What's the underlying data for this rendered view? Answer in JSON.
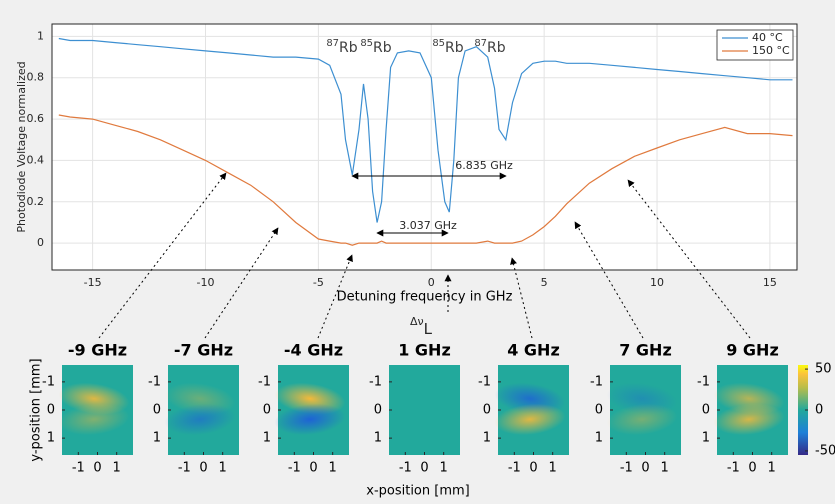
{
  "chart_data": [
    {
      "type": "line",
      "xlabel": "Detuning frequency in GHz",
      "ylabel": "Photodiode Voltage normalized",
      "x": [
        -16.5,
        -16,
        -15,
        -14,
        -13,
        -12,
        -11,
        -10,
        -9,
        -8,
        -7,
        -6,
        -5,
        -4.5,
        -4,
        -3.8,
        -3.5,
        -3.2,
        -3,
        -2.8,
        -2.6,
        -2.4,
        -2.2,
        -2,
        -1.8,
        -1.5,
        -1,
        -0.5,
        0,
        0.3,
        0.6,
        0.8,
        1,
        1.2,
        1.5,
        2,
        2.5,
        2.8,
        3,
        3.3,
        3.6,
        4,
        4.5,
        5,
        5.5,
        6,
        7,
        8,
        9,
        10,
        11,
        12,
        13,
        14,
        15,
        16
      ],
      "series": [
        {
          "name": "40 °C",
          "color": "#3d8fd1",
          "values": [
            0.99,
            0.98,
            0.98,
            0.97,
            0.96,
            0.95,
            0.94,
            0.93,
            0.92,
            0.91,
            0.9,
            0.9,
            0.89,
            0.86,
            0.72,
            0.5,
            0.33,
            0.55,
            0.77,
            0.6,
            0.25,
            0.1,
            0.2,
            0.55,
            0.85,
            0.92,
            0.93,
            0.92,
            0.8,
            0.45,
            0.2,
            0.15,
            0.4,
            0.8,
            0.93,
            0.95,
            0.9,
            0.75,
            0.55,
            0.5,
            0.68,
            0.82,
            0.87,
            0.88,
            0.88,
            0.87,
            0.87,
            0.86,
            0.85,
            0.84,
            0.83,
            0.82,
            0.81,
            0.8,
            0.79,
            0.79
          ]
        },
        {
          "name": "150 °C",
          "color": "#e07a3e",
          "values": [
            0.62,
            0.61,
            0.6,
            0.57,
            0.54,
            0.5,
            0.45,
            0.4,
            0.34,
            0.28,
            0.2,
            0.1,
            0.02,
            0.01,
            0,
            0,
            -0.01,
            0,
            0,
            0,
            0,
            0,
            0.01,
            0,
            0,
            0,
            0,
            0,
            0,
            0,
            0,
            0,
            0,
            0,
            0,
            0,
            0.01,
            0,
            0,
            0,
            0,
            0.01,
            0.04,
            0.08,
            0.13,
            0.19,
            0.29,
            0.36,
            0.42,
            0.46,
            0.5,
            0.53,
            0.56,
            0.53,
            0.53,
            0.52
          ]
        }
      ],
      "xlim": [
        -16.8,
        16.2
      ],
      "ylim": [
        -0.13,
        1.06
      ],
      "xticks": [
        -15,
        -10,
        -5,
        0,
        5,
        10,
        15
      ],
      "yticks": [
        0,
        0.2,
        0.4,
        0.6,
        0.8,
        1
      ],
      "grid": true,
      "legend": "upper right",
      "annotations": {
        "isotopes": [
          {
            "sup": "87",
            "text": "Rb"
          },
          {
            "sup": "85",
            "text": "Rb"
          },
          {
            "sup": "85",
            "text": "Rb"
          },
          {
            "sup": "87",
            "text": "Rb"
          }
        ],
        "splittings": [
          "6.835 GHz",
          "3.037 GHz"
        ]
      }
    },
    {
      "type": "heatmap",
      "panels": [
        {
          "title": "-9 GHz"
        },
        {
          "title": "-7 GHz"
        },
        {
          "title": "-4 GHz"
        },
        {
          "title": "1 GHz"
        },
        {
          "title": "4 GHz"
        },
        {
          "title": "7 GHz"
        },
        {
          "title": "9 GHz"
        }
      ],
      "xlabel": "x-position [mm]",
      "ylabel": "y-position [mm]",
      "xlim": [
        -1.85,
        1.85
      ],
      "ylim": [
        -1.6,
        1.6
      ],
      "xticks": [
        -1,
        0,
        1
      ],
      "yticks": [
        -1,
        0,
        1
      ],
      "clim": [
        -55,
        55
      ],
      "colorbar_ticks": [
        -50,
        0,
        50
      ],
      "annotation": {
        "text": "Δν",
        "sub": "L"
      }
    }
  ]
}
